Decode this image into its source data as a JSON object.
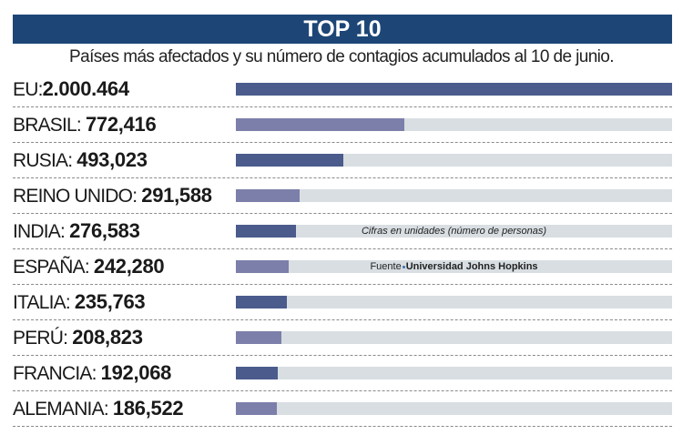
{
  "chart_data": {
    "type": "bar",
    "orientation": "horizontal",
    "title": "TOP 10",
    "subtitle": "Países más afectados y su número de contagios acumulados al 10 de junio.",
    "categories": [
      "EU",
      "BRASIL",
      "RUSIA",
      "REINO UNIDO",
      "INDIA",
      "ESPAÑA",
      "ITALIA",
      "PERÚ",
      "FRANCIA",
      "ALEMANIA"
    ],
    "value_labels": [
      "2.000.464",
      "772,416",
      "493,023",
      "291,588",
      "276,583",
      "242,280",
      "235,763",
      "208,823",
      "192,068",
      "186,522"
    ],
    "values": [
      2000464,
      772416,
      493023,
      291588,
      276583,
      242280,
      235763,
      208823,
      192068,
      186522
    ],
    "note": "Cifras en unidades (número de personas)",
    "source_label": "Fuente",
    "source": "Universidad Johns Hopkins",
    "colors": {
      "header": "#1d4677",
      "bar_dark": "#4a5b8c",
      "bar_light": "#7c7fa9",
      "track": "#d8dee2"
    }
  }
}
